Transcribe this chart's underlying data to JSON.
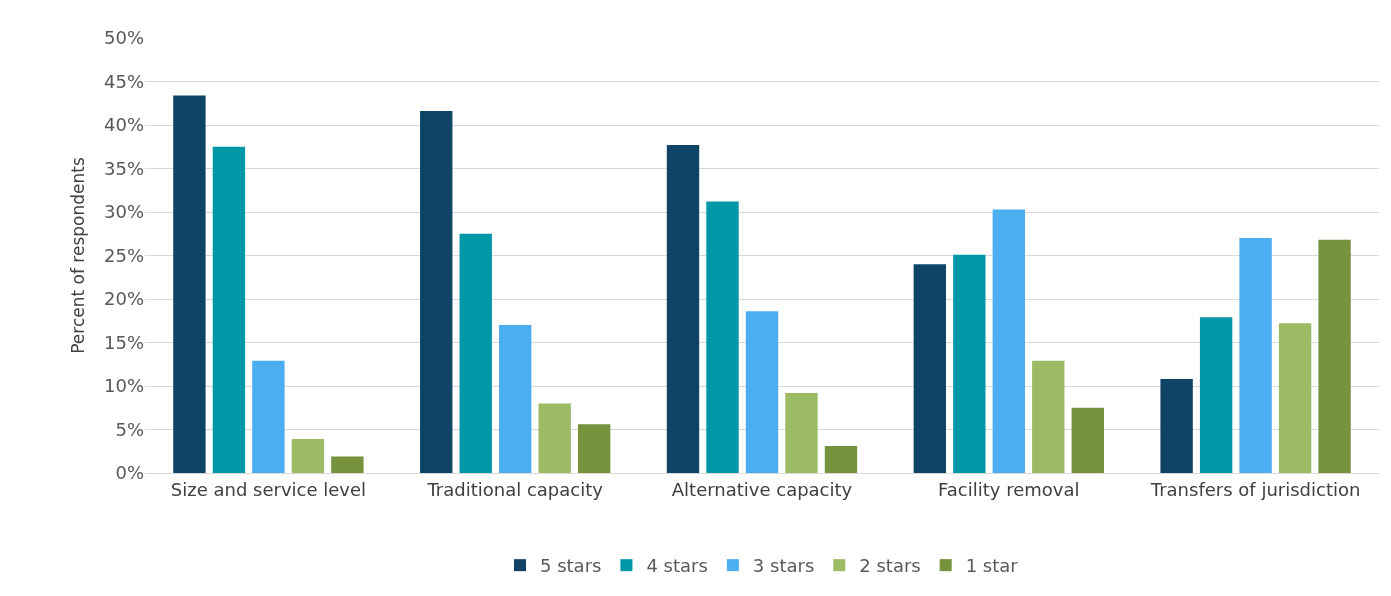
{
  "chart_data": {
    "type": "bar",
    "ylabel": "Percent of respondents",
    "categories": [
      "Size and service level",
      "Traditional capacity",
      "Alternative capacity",
      "Facility removal",
      "Transfers of jurisdiction"
    ],
    "series": [
      {
        "name": "5 stars",
        "color": "#0f4466",
        "values": [
          43.4,
          41.6,
          37.7,
          24.0,
          10.8
        ]
      },
      {
        "name": "4 stars",
        "color": "#0097a7",
        "values": [
          37.5,
          27.5,
          31.2,
          25.1,
          17.9
        ]
      },
      {
        "name": "3 stars",
        "color": "#4baef0",
        "values": [
          12.9,
          17.0,
          18.6,
          30.3,
          27.0
        ]
      },
      {
        "name": "2 stars",
        "color": "#9bbb65",
        "values": [
          3.9,
          8.0,
          9.2,
          12.9,
          17.2
        ]
      },
      {
        "name": "1 star",
        "color": "#76923c",
        "values": [
          1.9,
          5.6,
          3.1,
          7.5,
          26.8
        ]
      }
    ],
    "ylim": [
      0,
      50
    ],
    "yticks": [
      {
        "value": 0,
        "label": "0%"
      },
      {
        "value": 5,
        "label": "5%"
      },
      {
        "value": 10,
        "label": "10%"
      },
      {
        "value": 15,
        "label": "15%"
      },
      {
        "value": 20,
        "label": "20%"
      },
      {
        "value": 25,
        "label": "25%"
      },
      {
        "value": 30,
        "label": "30%"
      },
      {
        "value": 35,
        "label": "35%"
      },
      {
        "value": 40,
        "label": "40%"
      },
      {
        "value": 45,
        "label": "45%"
      },
      {
        "value": 50,
        "label": "50%"
      }
    ],
    "grid": "y",
    "legend": "bottom"
  }
}
